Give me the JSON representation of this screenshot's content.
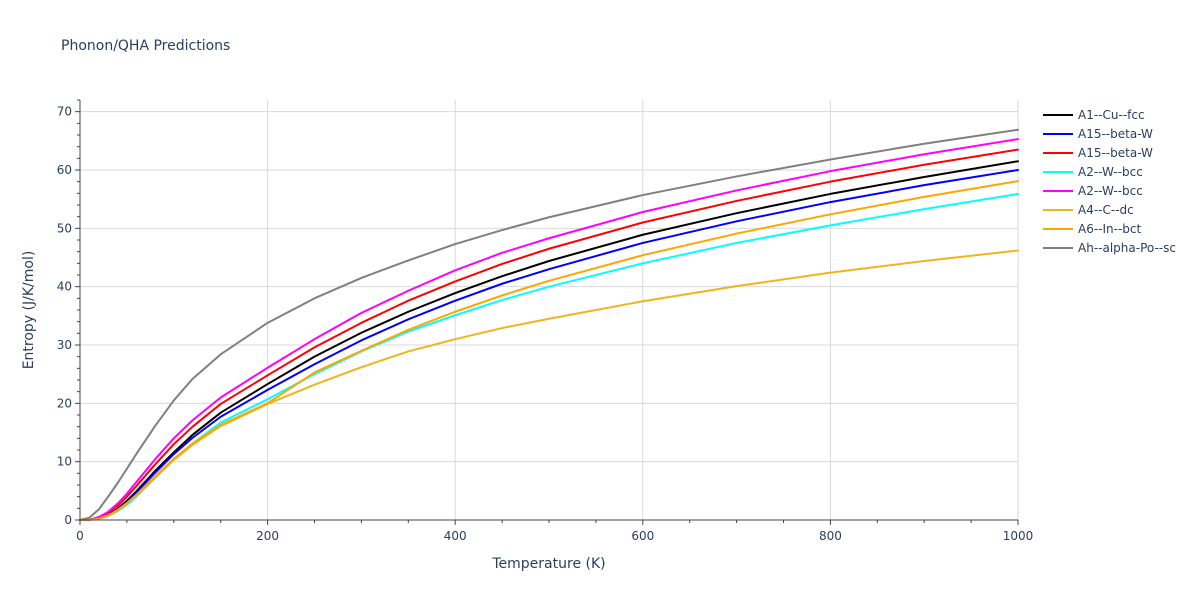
{
  "chart_data": {
    "type": "line",
    "title": "Phonon/QHA Predictions",
    "xlabel": "Temperature (K)",
    "ylabel": "Entropy (J/K/mol)",
    "xlim": [
      0,
      1000
    ],
    "ylim": [
      0,
      72
    ],
    "xticks": [
      0,
      200,
      400,
      600,
      800,
      1000
    ],
    "yticks": [
      0,
      10,
      20,
      30,
      40,
      50,
      60,
      70
    ],
    "grid": true,
    "legend_position": "right",
    "x": [
      0,
      10,
      20,
      30,
      40,
      50,
      60,
      80,
      100,
      120,
      150,
      200,
      250,
      300,
      350,
      400,
      450,
      500,
      600,
      700,
      800,
      900,
      1000
    ],
    "series": [
      {
        "name": "A1--Cu--fcc",
        "color": "#000000",
        "values": [
          0,
          0.05,
          0.3,
          0.9,
          1.9,
          3.3,
          4.9,
          8.4,
          11.6,
          14.6,
          18.4,
          23.3,
          28.0,
          32.1,
          35.7,
          38.9,
          41.8,
          44.4,
          48.9,
          52.6,
          55.9,
          58.8,
          61.5
        ]
      },
      {
        "name": "A15--beta-W",
        "color": "#0000ff",
        "values": [
          0,
          0.05,
          0.3,
          0.9,
          1.8,
          3.1,
          4.7,
          8.1,
          11.3,
          14.1,
          17.7,
          22.3,
          26.7,
          30.8,
          34.4,
          37.6,
          40.5,
          43.0,
          47.5,
          51.2,
          54.5,
          57.4,
          60.0
        ]
      },
      {
        "name": "A15--beta-W",
        "color": "#ff0000",
        "values": [
          0,
          0.06,
          0.4,
          1.2,
          2.4,
          4.0,
          5.8,
          9.5,
          13.0,
          16.0,
          19.9,
          24.8,
          29.6,
          33.8,
          37.6,
          40.9,
          43.9,
          46.5,
          51.0,
          54.7,
          58.0,
          60.9,
          63.5
        ]
      },
      {
        "name": "A2--W--bcc",
        "color": "#00ffff",
        "values": [
          0,
          0.04,
          0.2,
          0.7,
          1.5,
          2.6,
          4.0,
          7.2,
          10.3,
          13.1,
          16.7,
          20.7,
          25.0,
          28.9,
          32.3,
          35.1,
          37.7,
          40.0,
          44.0,
          47.5,
          50.5,
          53.3,
          55.9
        ]
      },
      {
        "name": "A2--W--bcc",
        "color": "#ff00ff",
        "values": [
          0,
          0.07,
          0.5,
          1.4,
          2.8,
          4.5,
          6.5,
          10.4,
          14.0,
          17.1,
          21.0,
          26.1,
          31.0,
          35.5,
          39.3,
          42.8,
          45.8,
          48.3,
          52.8,
          56.5,
          59.8,
          62.7,
          65.3
        ]
      },
      {
        "name": "A4--C--dc",
        "color": "#f0b41e",
        "values": [
          0,
          0.04,
          0.2,
          0.7,
          1.6,
          2.8,
          4.2,
          7.3,
          10.3,
          12.9,
          16.1,
          19.9,
          23.2,
          26.2,
          28.9,
          31.0,
          32.9,
          34.5,
          37.5,
          40.1,
          42.4,
          44.4,
          46.2
        ]
      },
      {
        "name": "A6--In--bct",
        "color": "#ffa500",
        "values": [
          0,
          0.04,
          0.2,
          0.8,
          1.7,
          2.9,
          4.3,
          7.5,
          10.5,
          13.1,
          16.3,
          20.0,
          25.3,
          29.0,
          32.6,
          35.7,
          38.5,
          41.0,
          45.4,
          49.1,
          52.4,
          55.4,
          58.1
        ]
      },
      {
        "name": "Ah--alpha-Po--sc",
        "color": "#808080",
        "values": [
          0,
          0.4,
          1.8,
          4.0,
          6.3,
          8.8,
          11.3,
          16.1,
          20.5,
          24.2,
          28.4,
          33.8,
          38.0,
          41.5,
          44.5,
          47.3,
          49.7,
          51.9,
          55.7,
          58.9,
          61.8,
          64.5,
          66.9
        ]
      }
    ]
  }
}
